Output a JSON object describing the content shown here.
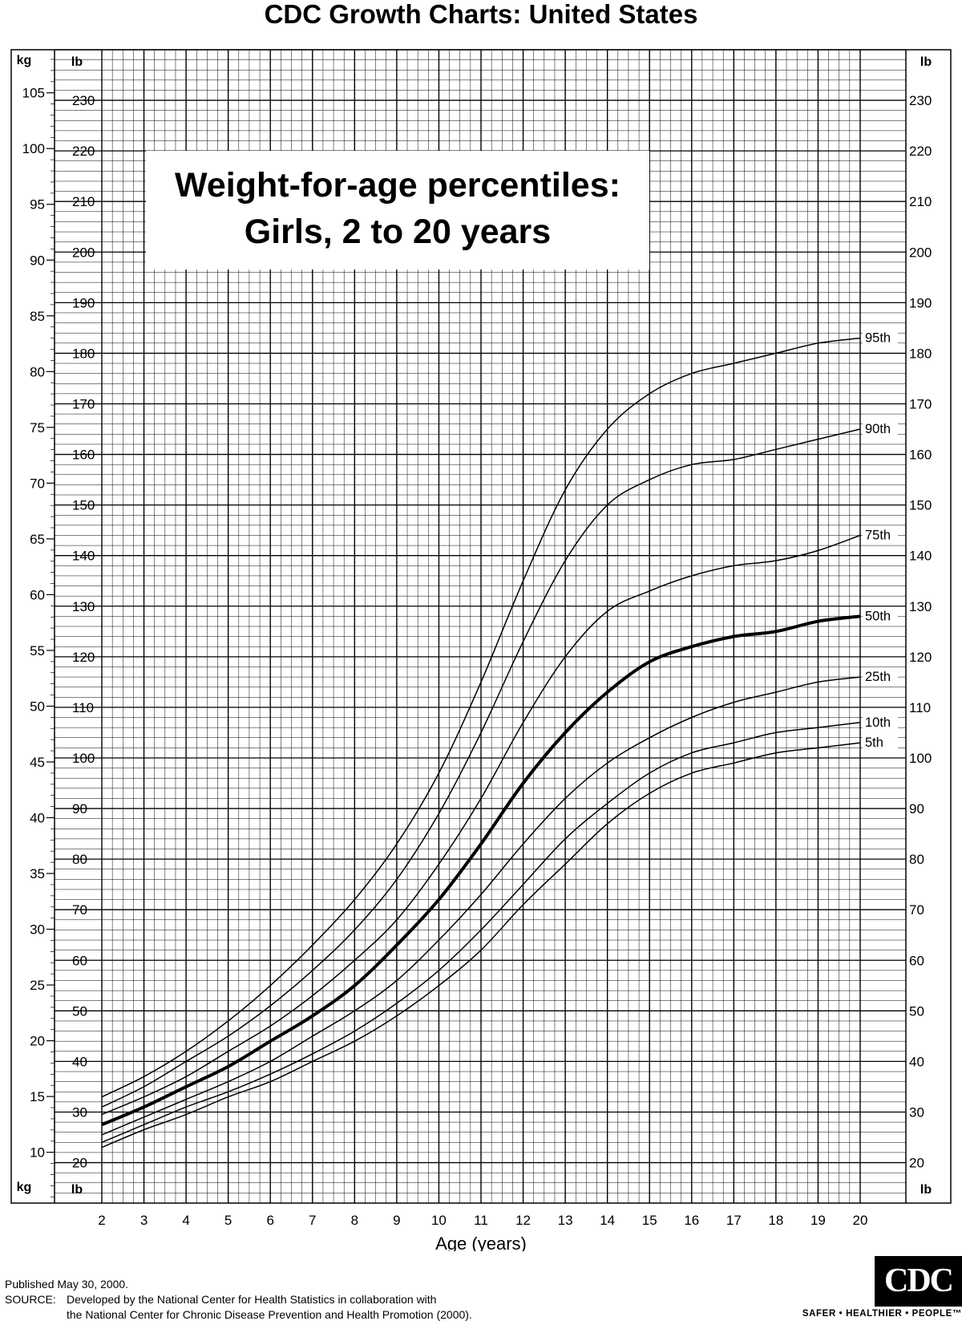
{
  "header": {
    "title": "CDC Growth Charts: United States"
  },
  "chart_data": {
    "type": "line",
    "title": "Weight-for-age percentiles:",
    "subtitle": "Girls, 2 to 20 years",
    "xlabel": "Age (years)",
    "x_ticks": [
      2,
      3,
      4,
      5,
      6,
      7,
      8,
      9,
      10,
      11,
      12,
      13,
      14,
      15,
      16,
      17,
      18,
      19,
      20
    ],
    "xlim": [
      2,
      20
    ],
    "left_unit_top": "kg",
    "left_unit_bottom": "kg",
    "right_unit_top": "lb",
    "right_unit_bottom": "lb",
    "lb_axis_label": "lb",
    "kg_ticks": [
      10,
      15,
      20,
      25,
      30,
      35,
      40,
      45,
      50,
      55,
      60,
      65,
      70,
      75,
      80,
      85,
      90,
      95,
      100,
      105
    ],
    "lb_ticks": [
      20,
      30,
      40,
      50,
      60,
      70,
      80,
      90,
      100,
      110,
      120,
      130,
      140,
      150,
      160,
      170,
      180,
      190,
      200,
      210,
      220,
      230
    ],
    "ylim_lb": [
      12,
      240
    ],
    "grid": true,
    "x": [
      2,
      3,
      4,
      5,
      6,
      7,
      8,
      9,
      10,
      11,
      12,
      13,
      14,
      15,
      16,
      17,
      18,
      19,
      20
    ],
    "series": [
      {
        "name": "95th",
        "values": [
          33,
          37,
          42,
          48,
          55,
          63,
          72,
          83,
          97,
          115,
          135,
          153,
          165,
          172,
          176,
          178,
          180,
          182,
          183
        ]
      },
      {
        "name": "90th",
        "values": [
          31,
          35,
          40,
          45,
          51,
          58,
          66,
          76,
          89,
          105,
          123,
          139,
          150,
          155,
          158,
          159,
          161,
          163,
          165
        ]
      },
      {
        "name": "75th",
        "values": [
          29.5,
          33,
          37,
          42,
          47,
          53,
          60,
          68,
          79,
          92,
          107,
          120,
          129,
          133,
          136,
          138,
          139,
          141,
          144
        ]
      },
      {
        "name": "50th",
        "values": [
          27.5,
          31,
          35,
          39,
          44,
          49,
          55,
          63,
          72,
          83,
          95,
          105,
          113,
          119,
          122,
          124,
          125,
          127,
          128
        ]
      },
      {
        "name": "25th",
        "values": [
          25.5,
          29,
          32.5,
          36,
          40,
          45,
          50,
          56,
          64,
          73,
          83,
          92,
          99,
          104,
          108,
          111,
          113,
          115,
          116
        ]
      },
      {
        "name": "10th",
        "values": [
          24,
          27.5,
          31,
          34,
          37.5,
          41.5,
          46,
          51.5,
          58,
          66,
          75,
          84,
          91,
          97,
          101,
          103,
          105,
          106,
          107
        ]
      },
      {
        "name": "5th",
        "values": [
          23,
          26.5,
          29.5,
          33,
          36,
          40,
          44,
          49,
          55,
          62,
          71,
          79,
          87,
          93,
          97,
          99,
          101,
          102,
          103
        ]
      }
    ]
  },
  "footer": {
    "published": "Published May 30, 2000.",
    "source_label": "SOURCE:",
    "source_line1": "Developed by the National Center for Health Statistics in collaboration with",
    "source_line2": "the National Center for Chronic Disease Prevention and Health Promotion (2000).",
    "logo_text": "CDC",
    "tagline": "SAFER • HEALTHIER • PEOPLE™"
  }
}
